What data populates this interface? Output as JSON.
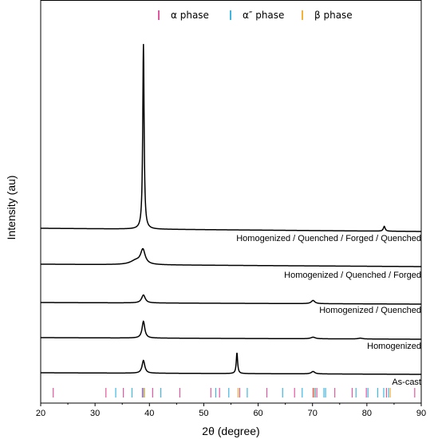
{
  "chart_data": {
    "type": "line",
    "xlabel": "2θ (degree)",
    "ylabel": "Intensity (au)",
    "xlim": [
      20,
      90
    ],
    "x_ticks": [
      20,
      30,
      40,
      50,
      60,
      70,
      80,
      90
    ],
    "grid": false,
    "legend_position": "top",
    "legend": [
      {
        "name": "α phase",
        "color": "#e0579e"
      },
      {
        "name": "α″ phase",
        "color": "#3fb7e0"
      },
      {
        "name": "β phase",
        "color": "#f3b23a"
      }
    ],
    "phase_markers": {
      "alpha": [
        22.3,
        32.0,
        35.2,
        38.7,
        40.6,
        45.6,
        51.3,
        52.9,
        56.6,
        61.6,
        66.7,
        70.1,
        70.8,
        74.1,
        77.3,
        79.9,
        83.6,
        88.8
      ],
      "alpha_double_prime": [
        33.8,
        36.8,
        38.9,
        42.1,
        52.2,
        54.6,
        58.0,
        64.5,
        68.1,
        70.5,
        72.1,
        72.4,
        78.0,
        80.2,
        82.0,
        83.1,
        84.0
      ],
      "beta": [
        39.1,
        56.3,
        70.3,
        84.3
      ]
    },
    "series": [
      {
        "name": "Homogenized / Quenched / Forged / Quenched",
        "baseline": 4,
        "peaks": [
          {
            "x": 38.9,
            "height": 232,
            "width": 0.15
          },
          {
            "x": 83.2,
            "height": 6,
            "width": 0.2
          }
        ]
      },
      {
        "name": "Homogenized / Quenched / Forged",
        "baseline": 3,
        "peaks": [
          {
            "x": 38.8,
            "height": 18,
            "width": 0.5
          },
          {
            "x": 37.5,
            "height": 5,
            "width": 1.2
          }
        ]
      },
      {
        "name": "Homogenized / Quenched",
        "baseline": 2,
        "peaks": [
          {
            "x": 38.9,
            "height": 10,
            "width": 0.4
          },
          {
            "x": 70.1,
            "height": 4,
            "width": 0.4
          }
        ]
      },
      {
        "name": "Homogenized",
        "baseline": 2,
        "peaks": [
          {
            "x": 38.9,
            "height": 21,
            "width": 0.3
          },
          {
            "x": 70.1,
            "height": 2,
            "width": 0.5
          },
          {
            "x": 78.8,
            "height": 1,
            "width": 0.5
          }
        ]
      },
      {
        "name": "As-cast",
        "baseline": 2,
        "peaks": [
          {
            "x": 38.9,
            "height": 16,
            "width": 0.3
          },
          {
            "x": 56.1,
            "height": 26,
            "width": 0.15
          },
          {
            "x": 70.1,
            "height": 3,
            "width": 0.4
          }
        ]
      }
    ]
  }
}
